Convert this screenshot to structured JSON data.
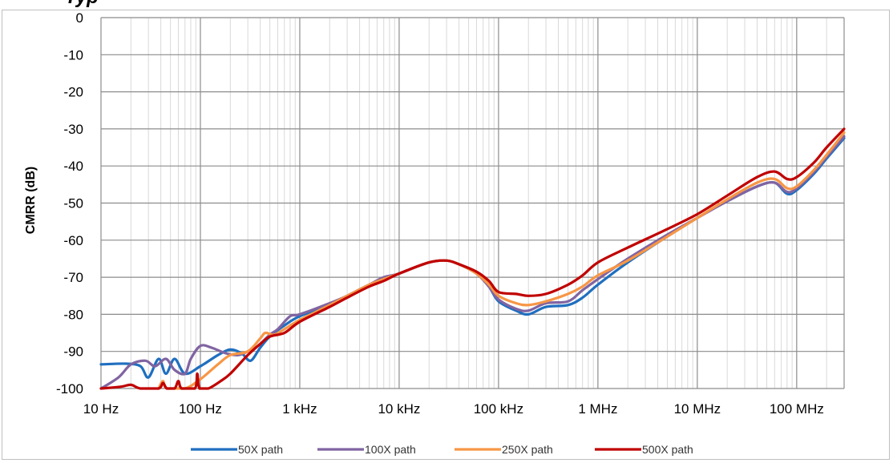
{
  "chart_data": {
    "type": "line",
    "title_fragment": "Typ",
    "xlabel": "",
    "ylabel": "CMRR (dB)",
    "x_scale": "log",
    "xlim": [
      10,
      300000000
    ],
    "ylim": [
      -100,
      0
    ],
    "yticks": [
      0,
      -10,
      -20,
      -30,
      -40,
      -50,
      -60,
      -70,
      -80,
      -90,
      -100
    ],
    "xticks": [
      {
        "value": 10,
        "label": "10 Hz"
      },
      {
        "value": 100,
        "label": "100 Hz"
      },
      {
        "value": 1000,
        "label": "1 kHz"
      },
      {
        "value": 10000,
        "label": "10 kHz"
      },
      {
        "value": 100000,
        "label": "100 kHz"
      },
      {
        "value": 1000000,
        "label": "1 MHz"
      },
      {
        "value": 10000000,
        "label": "10 MHz"
      },
      {
        "value": 100000000,
        "label": "100 MHz"
      }
    ],
    "grid": true,
    "legend_position": "bottom",
    "series": [
      {
        "name": "50X path",
        "color": "#1f6fbf",
        "points": [
          [
            10,
            -93.5
          ],
          [
            18,
            -93.3
          ],
          [
            25,
            -94
          ],
          [
            30,
            -97
          ],
          [
            38,
            -92
          ],
          [
            45,
            -96
          ],
          [
            55,
            -92
          ],
          [
            70,
            -96
          ],
          [
            100,
            -94
          ],
          [
            150,
            -91
          ],
          [
            200,
            -89.5
          ],
          [
            260,
            -90.5
          ],
          [
            320,
            -92.5
          ],
          [
            400,
            -89
          ],
          [
            500,
            -86
          ],
          [
            700,
            -83
          ],
          [
            1000,
            -80.5
          ],
          [
            2000,
            -77.5
          ],
          [
            3000,
            -75
          ],
          [
            5000,
            -72
          ],
          [
            7000,
            -70.5
          ],
          [
            10000,
            -69
          ],
          [
            20000,
            -66
          ],
          [
            30000,
            -65.5
          ],
          [
            40000,
            -66.5
          ],
          [
            60000,
            -69
          ],
          [
            80000,
            -72.5
          ],
          [
            100000,
            -76.5
          ],
          [
            150000,
            -79
          ],
          [
            200000,
            -80
          ],
          [
            300000,
            -78
          ],
          [
            500000,
            -77.5
          ],
          [
            700000,
            -75.5
          ],
          [
            1000000,
            -72
          ],
          [
            2000000,
            -66
          ],
          [
            5000000,
            -59
          ],
          [
            10000000,
            -54
          ],
          [
            20000000,
            -49.5
          ],
          [
            40000000,
            -45.5
          ],
          [
            60000000,
            -44.5
          ],
          [
            80000000,
            -47.5
          ],
          [
            100000000,
            -46.5
          ],
          [
            150000000,
            -42
          ],
          [
            200000000,
            -38
          ],
          [
            300000000,
            -32.5
          ]
        ]
      },
      {
        "name": "100X path",
        "color": "#8064a2",
        "points": [
          [
            10,
            -100
          ],
          [
            15,
            -97
          ],
          [
            20,
            -93.5
          ],
          [
            28,
            -92.5
          ],
          [
            35,
            -94
          ],
          [
            45,
            -92
          ],
          [
            55,
            -95
          ],
          [
            70,
            -96
          ],
          [
            80,
            -92
          ],
          [
            100,
            -88.5
          ],
          [
            130,
            -89
          ],
          [
            180,
            -90.5
          ],
          [
            240,
            -91
          ],
          [
            300,
            -90
          ],
          [
            380,
            -88.5
          ],
          [
            500,
            -85.5
          ],
          [
            600,
            -84
          ],
          [
            800,
            -80.5
          ],
          [
            1000,
            -80
          ],
          [
            2000,
            -77
          ],
          [
            3000,
            -75
          ],
          [
            5000,
            -72
          ],
          [
            7000,
            -70
          ],
          [
            10000,
            -69
          ],
          [
            20000,
            -66
          ],
          [
            30000,
            -65.5
          ],
          [
            40000,
            -66.5
          ],
          [
            60000,
            -69
          ],
          [
            80000,
            -72.5
          ],
          [
            100000,
            -76
          ],
          [
            150000,
            -78.5
          ],
          [
            200000,
            -79
          ],
          [
            300000,
            -77
          ],
          [
            500000,
            -76.5
          ],
          [
            700000,
            -73.5
          ],
          [
            1000000,
            -70.5
          ],
          [
            2000000,
            -65
          ],
          [
            5000000,
            -58.5
          ],
          [
            10000000,
            -54
          ],
          [
            20000000,
            -49.5
          ],
          [
            40000000,
            -45.5
          ],
          [
            60000000,
            -44.5
          ],
          [
            80000000,
            -47
          ],
          [
            100000000,
            -46
          ],
          [
            150000000,
            -41.5
          ],
          [
            200000000,
            -37.5
          ],
          [
            300000000,
            -32
          ]
        ]
      },
      {
        "name": "250X path",
        "color": "#f79646",
        "points": [
          [
            38,
            -100
          ],
          [
            42,
            -98
          ],
          [
            46,
            -100
          ],
          [
            70,
            -100
          ],
          [
            100,
            -97.5
          ],
          [
            150,
            -93.5
          ],
          [
            200,
            -91
          ],
          [
            300,
            -90
          ],
          [
            400,
            -86.5
          ],
          [
            450,
            -85
          ],
          [
            550,
            -85.5
          ],
          [
            700,
            -84
          ],
          [
            1000,
            -81.5
          ],
          [
            2000,
            -77.5
          ],
          [
            3000,
            -75
          ],
          [
            5000,
            -72
          ],
          [
            7000,
            -70.5
          ],
          [
            10000,
            -69
          ],
          [
            20000,
            -66
          ],
          [
            30000,
            -65.5
          ],
          [
            40000,
            -66.5
          ],
          [
            60000,
            -69
          ],
          [
            80000,
            -72
          ],
          [
            100000,
            -75
          ],
          [
            150000,
            -77
          ],
          [
            200000,
            -77.5
          ],
          [
            300000,
            -76.5
          ],
          [
            500000,
            -74.5
          ],
          [
            700000,
            -72.5
          ],
          [
            1000000,
            -69.5
          ],
          [
            2000000,
            -65.5
          ],
          [
            5000000,
            -59
          ],
          [
            10000000,
            -54
          ],
          [
            20000000,
            -49
          ],
          [
            40000000,
            -44.5
          ],
          [
            60000000,
            -43.5
          ],
          [
            80000000,
            -46
          ],
          [
            100000000,
            -45.5
          ],
          [
            150000000,
            -41
          ],
          [
            200000000,
            -37
          ],
          [
            300000000,
            -31
          ]
        ]
      },
      {
        "name": "500X path",
        "color": "#c00000",
        "points": [
          [
            10,
            -100
          ],
          [
            16,
            -99.5
          ],
          [
            20,
            -99
          ],
          [
            25,
            -100
          ],
          [
            38,
            -100
          ],
          [
            42,
            -98.5
          ],
          [
            46,
            -100
          ],
          [
            55,
            -100
          ],
          [
            60,
            -98
          ],
          [
            65,
            -100
          ],
          [
            88,
            -100
          ],
          [
            93,
            -96
          ],
          [
            98,
            -100
          ],
          [
            120,
            -100
          ],
          [
            160,
            -98
          ],
          [
            200,
            -96
          ],
          [
            300,
            -91
          ],
          [
            400,
            -88
          ],
          [
            500,
            -86
          ],
          [
            700,
            -85
          ],
          [
            1000,
            -82
          ],
          [
            2000,
            -78
          ],
          [
            3000,
            -75.5
          ],
          [
            5000,
            -72.5
          ],
          [
            7000,
            -71
          ],
          [
            10000,
            -69
          ],
          [
            20000,
            -66
          ],
          [
            30000,
            -65.5
          ],
          [
            40000,
            -66.5
          ],
          [
            60000,
            -68.5
          ],
          [
            80000,
            -71
          ],
          [
            100000,
            -74
          ],
          [
            150000,
            -74.5
          ],
          [
            200000,
            -75
          ],
          [
            300000,
            -74.5
          ],
          [
            500000,
            -72
          ],
          [
            700000,
            -69.5
          ],
          [
            1000000,
            -66
          ],
          [
            2000000,
            -62
          ],
          [
            5000000,
            -57
          ],
          [
            10000000,
            -53
          ],
          [
            20000000,
            -48
          ],
          [
            40000000,
            -43
          ],
          [
            60000000,
            -41.5
          ],
          [
            80000000,
            -43.5
          ],
          [
            100000000,
            -43
          ],
          [
            150000000,
            -39
          ],
          [
            200000000,
            -35
          ],
          [
            300000000,
            -30
          ]
        ]
      }
    ]
  }
}
